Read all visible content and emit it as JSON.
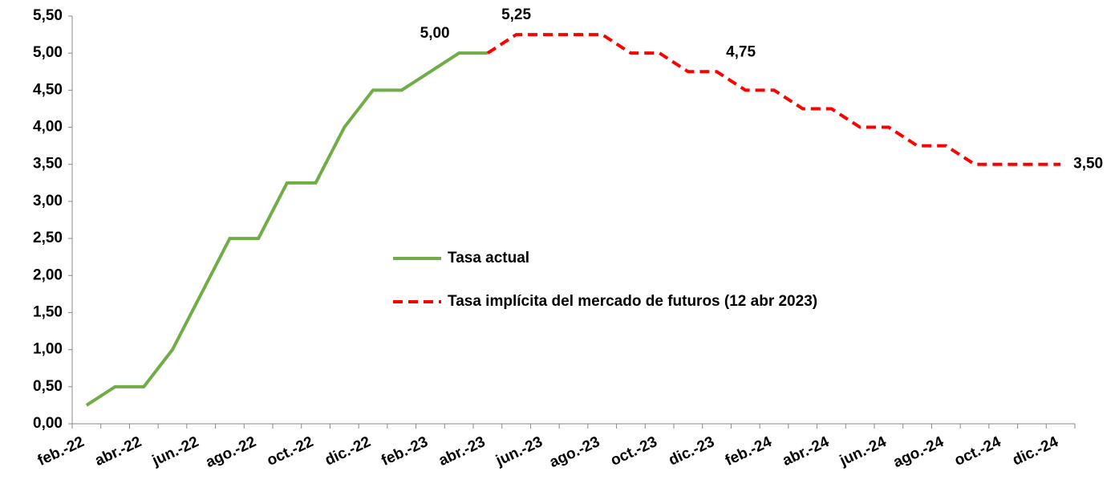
{
  "chart_data": {
    "type": "line",
    "categories": [
      "feb.-22",
      null,
      "abr.-22",
      null,
      "jun.-22",
      null,
      "ago.-22",
      null,
      "oct.-22",
      null,
      "dic.-22",
      null,
      "feb.-23",
      null,
      "abr.-23",
      null,
      "jun.-23",
      null,
      "ago.-23",
      null,
      "oct.-23",
      null,
      "dic.-23",
      null,
      "feb.-24",
      null,
      "abr.-24",
      null,
      "jun.-24",
      null,
      "ago.-24",
      null,
      "oct.-24",
      null,
      "dic.-24"
    ],
    "series": [
      {
        "name": "Tasa actual",
        "color": "#70ad47",
        "line_style": "solid",
        "values": [
          0.25,
          0.5,
          0.5,
          1.0,
          1.75,
          2.5,
          2.5,
          3.25,
          3.25,
          4.0,
          4.5,
          4.5,
          4.75,
          5.0,
          5.0,
          null,
          null,
          null,
          null,
          null,
          null,
          null,
          null,
          null,
          null,
          null,
          null,
          null,
          null,
          null,
          null,
          null,
          null,
          null,
          null
        ],
        "value_labels": [
          null,
          null,
          null,
          null,
          null,
          null,
          null,
          null,
          null,
          null,
          null,
          null,
          null,
          "5,00",
          null,
          null,
          null,
          null,
          null,
          null,
          null,
          null,
          null,
          null,
          null,
          null,
          null,
          null,
          null,
          null,
          null,
          null,
          null,
          null,
          null
        ]
      },
      {
        "name": "Tasa implícita del mercado de futuros (12 abr 2023)",
        "color": "#ff0000",
        "line_style": "dashed",
        "values": [
          null,
          null,
          null,
          null,
          null,
          null,
          null,
          null,
          null,
          null,
          null,
          null,
          null,
          null,
          5.0,
          5.25,
          5.25,
          5.25,
          5.25,
          5.0,
          5.0,
          4.75,
          4.75,
          4.5,
          4.5,
          4.25,
          4.25,
          4.0,
          4.0,
          3.75,
          3.75,
          3.5,
          3.5,
          3.5,
          3.5
        ],
        "value_labels": [
          null,
          null,
          null,
          null,
          null,
          null,
          null,
          null,
          null,
          null,
          null,
          null,
          null,
          null,
          null,
          "5,25",
          null,
          null,
          null,
          null,
          null,
          null,
          "4,75",
          null,
          null,
          null,
          null,
          null,
          null,
          null,
          null,
          null,
          null,
          null,
          "3,50"
        ]
      }
    ],
    "ylim": [
      0,
      5.5
    ],
    "yticks": [
      {
        "value": 0,
        "label": "0,00"
      },
      {
        "value": 0.5,
        "label": "0,50"
      },
      {
        "value": 1,
        "label": "1,00"
      },
      {
        "value": 1.5,
        "label": "1,50"
      },
      {
        "value": 2,
        "label": "2,00"
      },
      {
        "value": 2.5,
        "label": "2,50"
      },
      {
        "value": 3,
        "label": "3,00"
      },
      {
        "value": 3.5,
        "label": "3,50"
      },
      {
        "value": 4,
        "label": "4,00"
      },
      {
        "value": 4.5,
        "label": "4,50"
      },
      {
        "value": 5,
        "label": "5,00"
      },
      {
        "value": 5.5,
        "label": "5,50"
      }
    ],
    "grid": false,
    "legend": "center"
  }
}
